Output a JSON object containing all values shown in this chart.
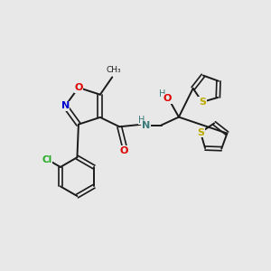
{
  "background_color": "#e8e8e8",
  "bond_color": "#1a1a1a",
  "atom_colors": {
    "O_isoxazole": "#dd0000",
    "N_isoxazole": "#0000cc",
    "N_amide": "#3a7a7a",
    "O_amide": "#dd0000",
    "O_hydroxyl": "#dd0000",
    "H_amide": "#3a7a7a",
    "Cl": "#22aa22",
    "S_thio": "#bbaa00",
    "C_default": "#1a1a1a"
  },
  "figsize": [
    3.0,
    3.0
  ],
  "dpi": 100,
  "xlim": [
    0,
    10
  ],
  "ylim": [
    0,
    10
  ]
}
